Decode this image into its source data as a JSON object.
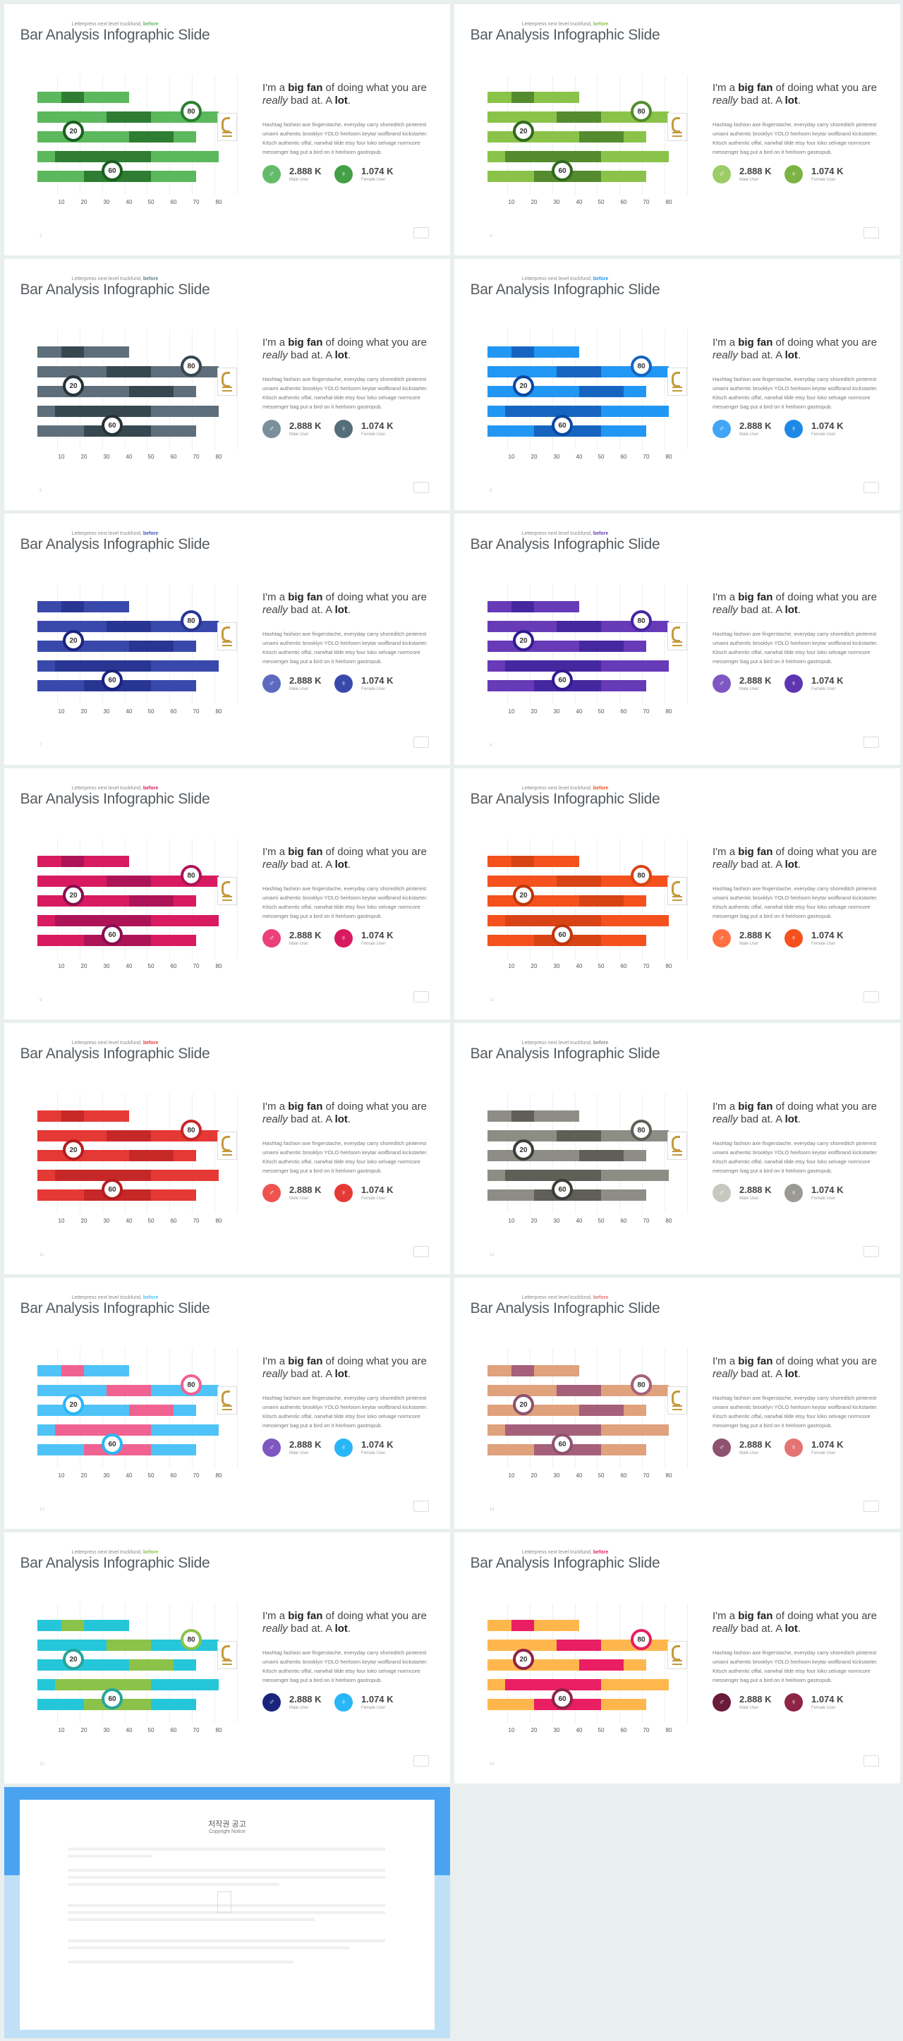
{
  "slide": {
    "kicker_text": "Letterpress next level truckfund, ",
    "kicker_hl": "before",
    "title": "Bar Analysis Infographic Slide",
    "lead_pre": "I'm a ",
    "lead_b1": "big fan",
    "lead_mid": " of doing what you are ",
    "lead_i": "really",
    "lead_mid2": " bad at. A ",
    "lead_b2": "lot",
    "lead_end": ".",
    "body": "Hashtag fashion axe fingerstache, everyday carry shoreditch pinterest umami authentic brooklyn YOLO heirloom keytar wolfbrand kickstarter. Kitsch authentic offal, narwhal tilde etsy four loko selvage normcore messenger bag put a bird on it heirloom gastropub.",
    "stat1_value": "2.888 K",
    "stat1_label": "Male User",
    "stat2_value": "1.074 K",
    "stat2_label": "Female User",
    "ticks": [
      "10",
      "20",
      "30",
      "40",
      "50",
      "60",
      "70",
      "80"
    ],
    "badge_top": "80",
    "badge_mid": "20",
    "badge_bot": "60"
  },
  "themes": [
    {
      "page": "3",
      "c": [
        "#5cb85c",
        "#2e7d32",
        "#1b5e20"
      ],
      "kicker": "#5cb85c",
      "ico1": "#66bb6a",
      "ico2": "#43a047"
    },
    {
      "page": "4",
      "c": [
        "#8bc34a",
        "#558b2f",
        "#33691e"
      ],
      "kicker": "#8bc34a",
      "ico1": "#9ccc65",
      "ico2": "#7cb342"
    },
    {
      "page": "5",
      "c": [
        "#5e6e7a",
        "#37474f",
        "#263238"
      ],
      "kicker": "#607d8b",
      "ico1": "#78909c",
      "ico2": "#546e7a"
    },
    {
      "page": "6",
      "c": [
        "#2196f3",
        "#1565c0",
        "#0d47a1"
      ],
      "kicker": "#2196f3",
      "ico1": "#42a5f5",
      "ico2": "#1e88e5"
    },
    {
      "page": "7",
      "c": [
        "#3949ab",
        "#283593",
        "#1a237e"
      ],
      "kicker": "#3f51b5",
      "ico1": "#5c6bc0",
      "ico2": "#3949ab"
    },
    {
      "page": "8",
      "c": [
        "#673ab7",
        "#4527a0",
        "#311b92"
      ],
      "kicker": "#673ab7",
      "ico1": "#7e57c2",
      "ico2": "#5e35b1"
    },
    {
      "page": "9",
      "c": [
        "#d81b60",
        "#ad1457",
        "#880e4f"
      ],
      "kicker": "#d81b60",
      "ico1": "#ec407a",
      "ico2": "#d81b60"
    },
    {
      "page": "10",
      "c": [
        "#f4511e",
        "#d84315",
        "#bf360c"
      ],
      "kicker": "#f4511e",
      "ico1": "#ff7043",
      "ico2": "#f4511e"
    },
    {
      "page": "11",
      "c": [
        "#e53935",
        "#c62828",
        "#b71c1c"
      ],
      "kicker": "#e53935",
      "ico1": "#ef5350",
      "ico2": "#e53935"
    },
    {
      "page": "12",
      "c": [
        "#8d8d86",
        "#5f5f58",
        "#3e3e38"
      ],
      "kicker": "#8d8d86",
      "ico1": "#c8c8c0",
      "ico2": "#9a9a92"
    },
    {
      "page": "13",
      "c": [
        "#4fc3f7",
        "#f06292",
        "#29b6f6"
      ],
      "kicker": "#4fc3f7",
      "ico1": "#7e57c2",
      "ico2": "#29b6f6"
    },
    {
      "page": "14",
      "c": [
        "#e0a17d",
        "#a5607a",
        "#8e5170"
      ],
      "kicker": "#e57373",
      "ico1": "#8e5170",
      "ico2": "#e57373"
    },
    {
      "page": "15",
      "c": [
        "#26c6da",
        "#8bc34a",
        "#26a69a"
      ],
      "kicker": "#8bc34a",
      "ico1": "#1a237e",
      "ico2": "#29b6f6"
    },
    {
      "page": "16",
      "c": [
        "#ffb74d",
        "#e91e63",
        "#8e2446"
      ],
      "kicker": "#e91e63",
      "ico1": "#6a1b3a",
      "ico2": "#8e2446"
    }
  ],
  "copyright": {
    "title": "저작권 공고",
    "subtitle": "Copyright Notice"
  }
}
